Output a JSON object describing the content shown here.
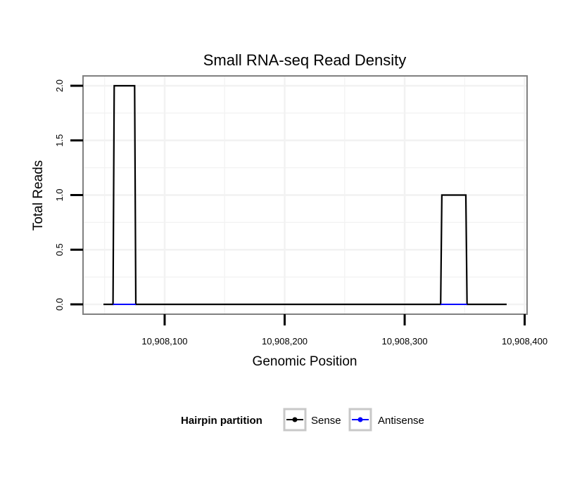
{
  "chart_data": {
    "type": "line",
    "title": "Small RNA-seq Read Density",
    "xlabel": "Genomic Position",
    "ylabel": "Total Reads",
    "xlim": [
      10908032,
      10908402
    ],
    "ylim": [
      -0.09,
      2.09
    ],
    "x_ticks": [
      10908100,
      10908200,
      10908300,
      10908400
    ],
    "x_tick_labels": [
      "10,908,100",
      "10,908,200",
      "10,908,300",
      "10,908,400"
    ],
    "y_ticks": [
      0,
      0.5,
      1,
      1.5,
      2
    ],
    "y_tick_labels": [
      "0.0",
      "0.5",
      "1.0",
      "1.5",
      "2.0"
    ],
    "grid": true,
    "legend": {
      "title": "Hairpin partition",
      "position": "bottom",
      "entries": [
        {
          "label": "Sense",
          "color": "#000000"
        },
        {
          "label": "Antisense",
          "color": "#0000ff"
        }
      ]
    },
    "series": [
      {
        "name": "Sense",
        "color": "#000000",
        "x": [
          10908049,
          10908057,
          10908058,
          10908075,
          10908076,
          10908330,
          10908331,
          10908351,
          10908352,
          10908385
        ],
        "y": [
          0,
          0,
          2,
          2,
          0,
          0,
          1,
          1,
          0,
          0
        ]
      },
      {
        "name": "Antisense",
        "color": "#0000ff",
        "x": [
          10908057,
          10908076,
          10908330,
          10908352
        ],
        "y": [
          0,
          0,
          0,
          0
        ],
        "segments": [
          [
            10908057,
            10908076
          ],
          [
            10908330,
            10908352
          ]
        ]
      }
    ]
  }
}
